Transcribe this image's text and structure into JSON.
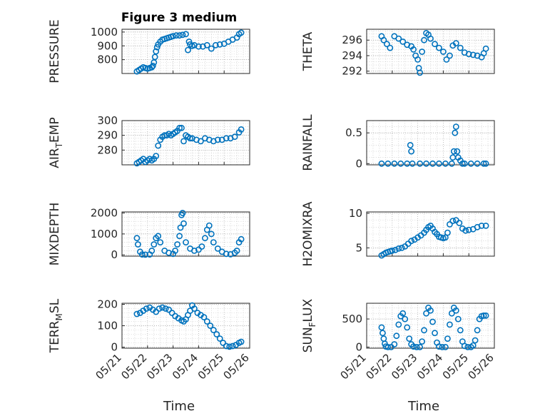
{
  "window": {
    "title": "Figure 3 medium"
  },
  "chart_data": [
    {
      "type": "scatter",
      "title": "Figure 3 medium",
      "ylabel": "PRESSURE",
      "xlabel": "",
      "ylim": [
        700,
        1020
      ],
      "yticks": [
        800,
        900,
        1000
      ],
      "xlim": [
        "05/21",
        "05/26"
      ],
      "xticks": [
        "05/21",
        "05/22",
        "05/23",
        "05/24",
        "05/25",
        "05/26"
      ],
      "grid": true,
      "series": [
        {
          "x": [
            "05/21 14:00",
            "05/21 16:00",
            "05/21 18:00",
            "05/21 20:00",
            "05/21 22:00",
            "05/22 00:00",
            "05/22 02:00",
            "05/22 04:00",
            "05/22 05:00",
            "05/22 06:00",
            "05/22 07:00",
            "05/22 08:00",
            "05/22 09:00",
            "05/22 10:00",
            "05/22 12:00",
            "05/22 14:00",
            "05/22 16:00",
            "05/22 18:00",
            "05/22 20:00",
            "05/22 22:00",
            "05/23 00:00",
            "05/23 03:00",
            "05/23 06:00",
            "05/23 09:00",
            "05/23 12:00",
            "05/23 14:00",
            "05/23 15:00",
            "05/23 16:00",
            "05/23 18:00",
            "05/23 20:00",
            "05/24 00:00",
            "05/24 04:00",
            "05/24 08:00",
            "05/24 12:00",
            "05/24 16:00",
            "05/24 20:00",
            "05/25 00:00",
            "05/25 04:00",
            "05/25 08:00",
            "05/25 12:00",
            "05/25 14:00",
            "05/25 16:00"
          ],
          "values": [
            715,
            725,
            735,
            745,
            740,
            735,
            740,
            745,
            755,
            780,
            820,
            860,
            890,
            910,
            930,
            945,
            950,
            955,
            960,
            965,
            970,
            975,
            975,
            980,
            985,
            870,
            930,
            910,
            900,
            905,
            895,
            895,
            905,
            880,
            905,
            910,
            915,
            930,
            945,
            960,
            985,
            995
          ]
        }
      ]
    },
    {
      "type": "scatter",
      "ylabel": "THETA",
      "xlabel": "",
      "ylim": [
        291.7,
        297.4
      ],
      "yticks": [
        292,
        294,
        296
      ],
      "xlim": [
        "05/21",
        "05/26"
      ],
      "xticks": [
        "05/21",
        "05/22",
        "05/23",
        "05/24",
        "05/25",
        "05/26"
      ],
      "grid": true,
      "series": [
        {
          "x": [
            "05/21 14:00",
            "05/21 16:00",
            "05/21 19:00",
            "05/21 22:00",
            "05/22 02:00",
            "05/22 06:00",
            "05/22 10:00",
            "05/22 14:00",
            "05/22 18:00",
            "05/22 20:00",
            "05/22 22:00",
            "05/23 00:00",
            "05/23 01:00",
            "05/23 02:00",
            "05/23 04:00",
            "05/23 06:00",
            "05/23 08:00",
            "05/23 10:00",
            "05/23 12:00",
            "05/23 16:00",
            "05/23 20:00",
            "05/24 00:00",
            "05/24 03:00",
            "05/24 06:00",
            "05/24 09:00",
            "05/24 12:00",
            "05/24 16:00",
            "05/24 20:00",
            "05/25 00:00",
            "05/25 04:00",
            "05/25 08:00",
            "05/25 12:00",
            "05/25 14:00",
            "05/25 16:00"
          ],
          "values": [
            296.5,
            296,
            295.5,
            295,
            296.5,
            296.2,
            295.8,
            295.4,
            295.2,
            294.8,
            294,
            293.5,
            292.4,
            291.8,
            294.5,
            296,
            296.9,
            296.7,
            296.2,
            295.5,
            295,
            294.5,
            293.5,
            294,
            295.3,
            295.6,
            295,
            294.4,
            294.2,
            294.1,
            294,
            293.8,
            294.3,
            294.9
          ]
        }
      ]
    },
    {
      "type": "scatter",
      "ylabel": "AIR_T_EMP",
      "xlabel": "",
      "ylim": [
        270,
        300
      ],
      "yticks": [
        280,
        290,
        300
      ],
      "xlim": [
        "05/21",
        "05/26"
      ],
      "xticks": [
        "05/21",
        "05/22",
        "05/23",
        "05/24",
        "05/25",
        "05/26"
      ],
      "grid": true,
      "series": [
        {
          "x": [
            "05/21 14:00",
            "05/21 16:00",
            "05/21 18:00",
            "05/21 20:00",
            "05/21 22:00",
            "05/22 00:00",
            "05/22 02:00",
            "05/22 04:00",
            "05/22 06:00",
            "05/22 08:00",
            "05/22 10:00",
            "05/22 12:00",
            "05/22 14:00",
            "05/22 16:00",
            "05/22 18:00",
            "05/22 20:00",
            "05/22 22:00",
            "05/23 00:00",
            "05/23 02:00",
            "05/23 04:00",
            "05/23 06:00",
            "05/23 08:00",
            "05/23 10:00",
            "05/23 12:00",
            "05/23 14:00",
            "05/23 16:00",
            "05/23 18:00",
            "05/23 22:00",
            "05/24 02:00",
            "05/24 06:00",
            "05/24 10:00",
            "05/24 14:00",
            "05/24 18:00",
            "05/24 22:00",
            "05/25 02:00",
            "05/25 06:00",
            "05/25 10:00",
            "05/25 14:00",
            "05/25 16:00"
          ],
          "values": [
            271,
            272,
            273,
            274,
            272,
            273,
            274,
            273,
            274,
            276,
            283,
            287,
            289,
            290,
            290,
            291,
            290,
            291,
            292,
            293,
            295,
            295,
            286,
            290,
            289,
            288,
            288,
            287,
            286,
            288,
            287,
            286,
            287,
            287,
            288,
            288,
            289,
            292,
            294
          ]
        }
      ]
    },
    {
      "type": "scatter",
      "ylabel": "RAINFALL",
      "xlabel": "",
      "ylim": [
        -0.02,
        0.7
      ],
      "yticks": [
        0,
        0.5
      ],
      "ytick_labels": [
        "0",
        "0.5"
      ],
      "xlim": [
        "05/21",
        "05/26"
      ],
      "xticks": [
        "05/21",
        "05/22",
        "05/23",
        "05/24",
        "05/25",
        "05/26"
      ],
      "grid": true,
      "series": [
        {
          "x": [
            "05/21 14:00",
            "05/21 20:00",
            "05/22 02:00",
            "05/22 08:00",
            "05/22 14:00",
            "05/22 17:00",
            "05/22 18:00",
            "05/22 19:00",
            "05/23 02:00",
            "05/23 08:00",
            "05/23 14:00",
            "05/23 20:00",
            "05/24 02:00",
            "05/24 08:00",
            "05/24 09:00",
            "05/24 10:00",
            "05/24 11:00",
            "05/24 12:00",
            "05/24 13:00",
            "05/24 14:00",
            "05/24 16:00",
            "05/24 18:00",
            "05/24 20:00",
            "05/25 02:00",
            "05/25 08:00",
            "05/25 14:00",
            "05/25 16:00"
          ],
          "values": [
            0,
            0,
            0,
            0,
            0,
            0.3,
            0.2,
            0,
            0,
            0,
            0,
            0,
            0,
            0,
            0.1,
            0.2,
            0.5,
            0.6,
            0.2,
            0.1,
            0.05,
            0,
            0,
            0,
            0,
            0,
            0
          ]
        }
      ]
    },
    {
      "type": "scatter",
      "ylabel": "MIXDEPTH",
      "xlabel": "",
      "ylim": [
        -60,
        2050
      ],
      "yticks": [
        0,
        1000,
        2000
      ],
      "xlim": [
        "05/21",
        "05/26"
      ],
      "xticks": [
        "05/21",
        "05/22",
        "05/23",
        "05/24",
        "05/25",
        "05/26"
      ],
      "grid": true,
      "series": [
        {
          "x": [
            "05/21 14:00",
            "05/21 15:00",
            "05/21 17:00",
            "05/21 19:00",
            "05/21 22:00",
            "05/22 02:00",
            "05/22 04:00",
            "05/22 06:00",
            "05/22 08:00",
            "05/22 10:00",
            "05/22 12:00",
            "05/22 16:00",
            "05/22 20:00",
            "05/23 00:00",
            "05/23 02:00",
            "05/23 04:00",
            "05/23 06:00",
            "05/23 07:00",
            "05/23 08:00",
            "05/23 09:00",
            "05/23 10:00",
            "05/23 12:00",
            "05/23 16:00",
            "05/23 20:00",
            "05/24 00:00",
            "05/24 03:00",
            "05/24 06:00",
            "05/24 08:00",
            "05/24 10:00",
            "05/24 12:00",
            "05/24 14:00",
            "05/24 18:00",
            "05/24 22:00",
            "05/25 02:00",
            "05/25 06:00",
            "05/25 10:00",
            "05/25 12:00",
            "05/25 14:00",
            "05/25 16:00"
          ],
          "values": [
            800,
            500,
            150,
            20,
            10,
            20,
            200,
            500,
            800,
            900,
            600,
            200,
            100,
            50,
            200,
            500,
            900,
            1300,
            1900,
            2000,
            1500,
            600,
            300,
            200,
            250,
            400,
            800,
            1200,
            1400,
            1000,
            600,
            300,
            150,
            50,
            30,
            100,
            200,
            600,
            750
          ]
        }
      ]
    },
    {
      "type": "scatter",
      "ylabel": "H2OMIXRA",
      "xlabel": "",
      "ylim": [
        3.8,
        10.2
      ],
      "yticks": [
        5,
        10
      ],
      "xlim": [
        "05/21",
        "05/26"
      ],
      "xticks": [
        "05/21",
        "05/22",
        "05/23",
        "05/24",
        "05/25",
        "05/26"
      ],
      "grid": true,
      "series": [
        {
          "x": [
            "05/21 14:00",
            "05/21 16:00",
            "05/21 18:00",
            "05/21 20:00",
            "05/21 22:00",
            "05/22 00:00",
            "05/22 03:00",
            "05/22 06:00",
            "05/22 09:00",
            "05/22 12:00",
            "05/22 15:00",
            "05/22 18:00",
            "05/22 21:00",
            "05/23 00:00",
            "05/23 03:00",
            "05/23 06:00",
            "05/23 08:00",
            "05/23 10:00",
            "05/23 12:00",
            "05/23 14:00",
            "05/23 16:00",
            "05/23 18:00",
            "05/23 20:00",
            "05/23 22:00",
            "05/24 00:00",
            "05/24 02:00",
            "05/24 04:00",
            "05/24 06:00",
            "05/24 09:00",
            "05/24 12:00",
            "05/24 15:00",
            "05/24 18:00",
            "05/24 21:00",
            "05/25 00:00",
            "05/25 04:00",
            "05/25 08:00",
            "05/25 12:00",
            "05/25 16:00"
          ],
          "values": [
            3.9,
            4.1,
            4.3,
            4.4,
            4.5,
            4.6,
            4.7,
            4.9,
            5,
            5.2,
            5.6,
            6,
            6.2,
            6.5,
            6.8,
            7.2,
            7.6,
            8,
            8.2,
            7.8,
            7.3,
            7,
            6.6,
            6.5,
            6.4,
            6.5,
            7.2,
            8.4,
            8.9,
            9,
            8.6,
            7.8,
            7.5,
            7.6,
            7.7,
            8,
            8.2,
            8.2
          ]
        }
      ]
    },
    {
      "type": "scatter",
      "ylabel": "TERR_M_SL",
      "xlabel": "Time",
      "ylim": [
        -5,
        205
      ],
      "yticks": [
        0,
        100,
        200
      ],
      "xlim": [
        "05/21",
        "05/26"
      ],
      "xticks": [
        "05/21",
        "05/22",
        "05/23",
        "05/24",
        "05/25",
        "05/26"
      ],
      "grid": true,
      "series": [
        {
          "x": [
            "05/21 14:00",
            "05/21 17:00",
            "05/21 20:00",
            "05/21 23:00",
            "05/22 02:00",
            "05/22 05:00",
            "05/22 08:00",
            "05/22 11:00",
            "05/22 14:00",
            "05/22 17:00",
            "05/22 20:00",
            "05/22 23:00",
            "05/23 02:00",
            "05/23 05:00",
            "05/23 08:00",
            "05/23 10:00",
            "05/23 12:00",
            "05/23 14:00",
            "05/23 16:00",
            "05/23 18:00",
            "05/23 20:00",
            "05/23 23:00",
            "05/24 02:00",
            "05/24 05:00",
            "05/24 08:00",
            "05/24 11:00",
            "05/24 14:00",
            "05/24 17:00",
            "05/24 20:00",
            "05/24 23:00",
            "05/25 02:00",
            "05/25 05:00",
            "05/25 08:00",
            "05/25 11:00",
            "05/25 14:00",
            "05/25 16:00"
          ],
          "values": [
            155,
            160,
            170,
            180,
            185,
            175,
            165,
            180,
            185,
            180,
            175,
            160,
            145,
            135,
            125,
            120,
            130,
            150,
            170,
            195,
            180,
            160,
            150,
            140,
            120,
            100,
            80,
            60,
            40,
            20,
            5,
            2,
            5,
            10,
            20,
            25
          ]
        }
      ]
    },
    {
      "type": "scatter",
      "ylabel": "SUN_F_LUX",
      "xlabel": "Time",
      "ylim": [
        -20,
        780
      ],
      "yticks": [
        0,
        500
      ],
      "xlim": [
        "05/21",
        "05/26"
      ],
      "xticks": [
        "05/21",
        "05/22",
        "05/23",
        "05/24",
        "05/25",
        "05/26"
      ],
      "grid": true,
      "series": [
        {
          "x": [
            "05/21 14:00",
            "05/21 15:00",
            "05/21 16:00",
            "05/21 17:00",
            "05/21 18:00",
            "05/21 20:00",
            "05/21 23:00",
            "05/22 02:00",
            "05/22 04:00",
            "05/22 06:00",
            "05/22 08:00",
            "05/22 10:00",
            "05/22 12:00",
            "05/22 14:00",
            "05/22 16:00",
            "05/22 18:00",
            "05/22 20:00",
            "05/22 23:00",
            "05/23 02:00",
            "05/23 04:00",
            "05/23 06:00",
            "05/23 08:00",
            "05/23 10:00",
            "05/23 12:00",
            "05/23 14:00",
            "05/23 16:00",
            "05/23 18:00",
            "05/23 20:00",
            "05/23 23:00",
            "05/24 02:00",
            "05/24 04:00",
            "05/24 06:00",
            "05/24 08:00",
            "05/24 10:00",
            "05/24 12:00",
            "05/24 14:00",
            "05/24 16:00",
            "05/24 18:00",
            "05/24 20:00",
            "05/24 23:00",
            "05/25 02:00",
            "05/25 04:00",
            "05/25 06:00",
            "05/25 08:00",
            "05/25 10:00",
            "05/25 12:00",
            "05/25 14:00",
            "05/25 16:00"
          ],
          "values": [
            350,
            250,
            150,
            60,
            10,
            0,
            0,
            50,
            200,
            400,
            550,
            600,
            500,
            350,
            150,
            50,
            10,
            0,
            0,
            100,
            300,
            600,
            700,
            650,
            450,
            250,
            80,
            10,
            0,
            0,
            150,
            400,
            600,
            700,
            650,
            500,
            300,
            100,
            20,
            0,
            0,
            30,
            120,
            300,
            500,
            550,
            560,
            560
          ]
        }
      ]
    }
  ]
}
